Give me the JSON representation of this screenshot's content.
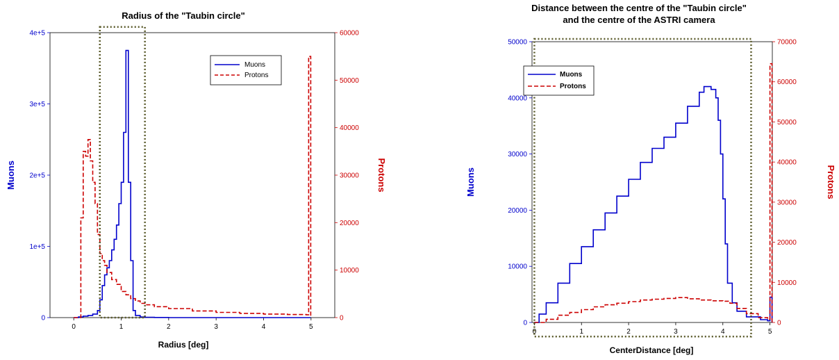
{
  "chart_data": [
    {
      "type": "line",
      "title": "Radius of the \"Taubin circle\"",
      "xlabel": "Radius  [deg]",
      "ylabel_left": "Muons",
      "ylabel_right": "Protons",
      "xlim": [
        -0.5,
        5.5
      ],
      "ylim_left": [
        0,
        400000
      ],
      "ylim_right": [
        0,
        60000
      ],
      "x_ticks": [
        "0",
        "1",
        "2",
        "3",
        "4",
        "5"
      ],
      "x_tick_values": [
        0,
        1,
        2,
        3,
        4,
        5
      ],
      "y_left_ticks": [
        "0",
        "1e+5",
        "2e+5",
        "3e+5",
        "4e+5"
      ],
      "y_left_tick_values": [
        0,
        100000,
        200000,
        300000,
        400000
      ],
      "y_right_ticks": [
        "0",
        "10000",
        "20000",
        "30000",
        "40000",
        "50000",
        "60000"
      ],
      "y_right_tick_values": [
        0,
        10000,
        20000,
        30000,
        40000,
        50000,
        60000
      ],
      "legend": {
        "position": "top-right",
        "bold": false
      },
      "highlight_box": {
        "x": [
          0.55,
          1.5
        ],
        "y_fraction": [
          0,
          1.02
        ]
      },
      "series": [
        {
          "name": "Muons",
          "axis": "left",
          "color": "#0000cc",
          "style": "solid",
          "x": [
            0.0,
            0.1,
            0.2,
            0.3,
            0.4,
            0.5,
            0.55,
            0.6,
            0.65,
            0.7,
            0.75,
            0.8,
            0.85,
            0.9,
            0.95,
            1.0,
            1.05,
            1.1,
            1.15,
            1.2,
            1.25,
            1.3,
            1.4,
            1.5,
            1.7,
            2.0,
            3.0,
            4.0,
            4.95
          ],
          "y": [
            0,
            1000,
            2000,
            3000,
            5000,
            10000,
            25000,
            45000,
            60000,
            70000,
            80000,
            95000,
            110000,
            130000,
            160000,
            190000,
            260000,
            375000,
            190000,
            80000,
            10000,
            3000,
            1000,
            500,
            200,
            0,
            0,
            0,
            0
          ]
        },
        {
          "name": "Protons",
          "axis": "right",
          "color": "#cc0000",
          "style": "dashed",
          "x": [
            0.0,
            0.1,
            0.15,
            0.2,
            0.25,
            0.3,
            0.35,
            0.4,
            0.45,
            0.5,
            0.55,
            0.6,
            0.65,
            0.7,
            0.8,
            0.9,
            1.0,
            1.1,
            1.2,
            1.3,
            1.4,
            1.5,
            1.7,
            2.0,
            2.5,
            3.0,
            3.5,
            4.0,
            4.5,
            4.9,
            4.95
          ],
          "y": [
            0,
            0,
            21000,
            35000,
            34000,
            37500,
            33000,
            28500,
            24000,
            17500,
            13500,
            12000,
            11000,
            9500,
            8000,
            7000,
            5500,
            4800,
            4000,
            3500,
            3000,
            2700,
            2300,
            1900,
            1400,
            1100,
            900,
            750,
            650,
            600,
            55000
          ]
        }
      ]
    },
    {
      "type": "line",
      "title_line1": "Distance between the centre of the \"Taubin circle\"",
      "title_line2": "and the centre of the ASTRI camera",
      "xlabel": "CenterDistance  [deg]",
      "ylabel_left": "Muons",
      "ylabel_right": "Protons",
      "xlim": [
        -0.05,
        5.05
      ],
      "ylim_left": [
        0,
        50000
      ],
      "ylim_right": [
        0,
        70000
      ],
      "x_ticks": [
        "0",
        "1",
        "2",
        "3",
        "4",
        "5"
      ],
      "x_tick_values": [
        0,
        1,
        2,
        3,
        4,
        5
      ],
      "y_left_ticks": [
        "0",
        "10000",
        "20000",
        "30000",
        "40000",
        "50000"
      ],
      "y_left_tick_values": [
        0,
        10000,
        20000,
        30000,
        40000,
        50000
      ],
      "y_right_ticks": [
        "0",
        "10000",
        "20000",
        "30000",
        "40000",
        "50000",
        "60000",
        "70000"
      ],
      "y_right_tick_values": [
        0,
        10000,
        20000,
        30000,
        40000,
        50000,
        60000,
        70000
      ],
      "legend": {
        "position": "top-left",
        "bold": true
      },
      "highlight_box": {
        "x": [
          0.0,
          4.6
        ],
        "y_fraction": [
          -0.05,
          1.01
        ]
      },
      "series": [
        {
          "name": "Muons",
          "axis": "left",
          "color": "#0000cc",
          "style": "solid",
          "x": [
            0.0,
            0.1,
            0.25,
            0.5,
            0.75,
            1.0,
            1.25,
            1.5,
            1.75,
            2.0,
            2.25,
            2.5,
            2.75,
            3.0,
            3.25,
            3.5,
            3.6,
            3.75,
            3.85,
            3.9,
            3.95,
            4.0,
            4.05,
            4.1,
            4.2,
            4.3,
            4.5,
            4.8,
            4.95,
            5.0
          ],
          "y": [
            0,
            1500,
            3500,
            7000,
            10500,
            13500,
            16500,
            19500,
            22500,
            25500,
            28500,
            31000,
            33000,
            35500,
            38500,
            41000,
            42000,
            41500,
            40000,
            36000,
            30000,
            22000,
            14000,
            7000,
            3500,
            2000,
            1000,
            500,
            300,
            4500
          ]
        },
        {
          "name": "Protons",
          "axis": "right",
          "color": "#cc0000",
          "style": "dashed",
          "x": [
            0.0,
            0.25,
            0.5,
            0.75,
            1.0,
            1.25,
            1.5,
            1.75,
            2.0,
            2.25,
            2.5,
            2.75,
            3.0,
            3.25,
            3.5,
            3.75,
            4.0,
            4.15,
            4.3,
            4.5,
            4.75,
            4.95,
            5.0
          ],
          "y": [
            0,
            800,
            1800,
            2500,
            3200,
            3900,
            4400,
            4800,
            5200,
            5600,
            5800,
            6000,
            6200,
            5900,
            5600,
            5400,
            5300,
            4800,
            3500,
            2200,
            1200,
            800,
            64500
          ]
        }
      ]
    }
  ]
}
